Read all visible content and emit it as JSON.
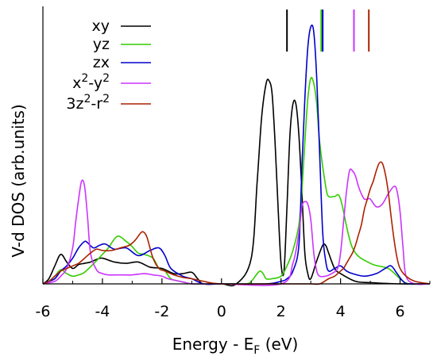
{
  "chart_data": {
    "type": "line",
    "title": "",
    "xlabel": {
      "main": "Energy - E",
      "sub": "F",
      "unit": " (eV)"
    },
    "ylabel": "V-d DOS (arb.units)",
    "xlim": [
      -6,
      7
    ],
    "ylim": [
      0,
      1.08
    ],
    "x_ticks": [
      -6,
      -4,
      -2,
      0,
      2,
      4,
      6
    ],
    "x_tick_labels": [
      "-6",
      "-4",
      "-2",
      "0",
      "2",
      "4",
      "6"
    ],
    "legend_position": "top-left",
    "series": [
      {
        "name": {
          "base": "xy"
        },
        "color": "#000000",
        "x": [
          -6.0,
          -5.8,
          -5.6,
          -5.4,
          -5.2,
          -5.0,
          -4.8,
          -4.6,
          -4.4,
          -4.2,
          -4.0,
          -3.6,
          -3.2,
          -2.8,
          -2.4,
          -2.0,
          -1.6,
          -1.3,
          -1.0,
          -0.8,
          -0.6,
          0.0,
          0.5,
          1.0,
          1.2,
          1.35,
          1.5,
          1.6,
          1.7,
          1.8,
          1.9,
          2.0,
          2.1,
          2.2,
          2.3,
          2.4,
          2.5,
          2.6,
          2.7,
          2.8,
          2.9,
          3.0,
          3.2,
          3.4,
          3.5,
          3.6,
          3.8,
          4.0,
          4.5,
          5.0,
          6.0,
          7.0
        ],
        "y": [
          0.0,
          0.02,
          0.07,
          0.115,
          0.085,
          0.06,
          0.075,
          0.08,
          0.085,
          0.095,
          0.1,
          0.085,
          0.08,
          0.085,
          0.065,
          0.06,
          0.04,
          0.04,
          0.045,
          0.02,
          0.0,
          0.0,
          0.0,
          0.1,
          0.4,
          0.65,
          0.78,
          0.79,
          0.74,
          0.55,
          0.3,
          0.08,
          0.05,
          0.3,
          0.58,
          0.7,
          0.7,
          0.58,
          0.36,
          0.12,
          0.04,
          0.02,
          0.09,
          0.15,
          0.15,
          0.12,
          0.06,
          0.04,
          0.01,
          0.005,
          0.0,
          0.0
        ]
      },
      {
        "name": {
          "base": "yz"
        },
        "color": "#33cc00",
        "x": [
          -6.0,
          -5.8,
          -5.6,
          -5.4,
          -5.2,
          -5.0,
          -4.8,
          -4.6,
          -4.2,
          -4.0,
          -3.8,
          -3.5,
          -3.2,
          -3.0,
          -2.8,
          -2.6,
          -2.3,
          -2.1,
          -1.9,
          -1.7,
          -1.4,
          -1.0,
          -0.6,
          0.0,
          0.8,
          1.0,
          1.2,
          1.3,
          1.4,
          1.5,
          1.7,
          2.0,
          2.2,
          2.4,
          2.6,
          2.7,
          2.8,
          2.9,
          3.0,
          3.1,
          3.2,
          3.3,
          3.5,
          3.6,
          3.8,
          4.0,
          4.4,
          5.0,
          5.6,
          6.0,
          6.3,
          7.0
        ],
        "y": [
          0.0,
          0.01,
          0.03,
          0.055,
          0.04,
          0.03,
          0.035,
          0.045,
          0.09,
          0.115,
          0.14,
          0.185,
          0.165,
          0.145,
          0.12,
          0.115,
          0.1,
          0.06,
          0.05,
          0.02,
          0.01,
          0.0,
          0.0,
          0.0,
          0.0,
          0.01,
          0.04,
          0.05,
          0.04,
          0.02,
          0.02,
          0.03,
          0.07,
          0.13,
          0.23,
          0.36,
          0.55,
          0.72,
          0.8,
          0.78,
          0.7,
          0.55,
          0.38,
          0.34,
          0.34,
          0.33,
          0.14,
          0.08,
          0.06,
          0.02,
          0.0,
          0.0
        ]
      },
      {
        "name": {
          "base": "zx"
        },
        "color": "#0000cc",
        "x": [
          -6.0,
          -5.8,
          -5.6,
          -5.4,
          -5.2,
          -5.0,
          -4.8,
          -4.6,
          -4.5,
          -4.3,
          -4.1,
          -3.9,
          -3.6,
          -3.2,
          -2.8,
          -2.4,
          -2.1,
          -1.9,
          -1.7,
          -1.3,
          -1.0,
          -0.6,
          0.0,
          1.5,
          2.0,
          2.2,
          2.4,
          2.6,
          2.7,
          2.8,
          2.9,
          3.0,
          3.1,
          3.2,
          3.3,
          3.4,
          3.5,
          3.6,
          3.8,
          4.0,
          4.2,
          4.4,
          4.8,
          5.2,
          5.5,
          5.7,
          5.9,
          6.1,
          6.3,
          7.0
        ],
        "y": [
          0.0,
          0.01,
          0.02,
          0.05,
          0.07,
          0.1,
          0.14,
          0.165,
          0.16,
          0.14,
          0.15,
          0.155,
          0.135,
          0.14,
          0.11,
          0.13,
          0.14,
          0.11,
          0.06,
          0.03,
          0.02,
          0.0,
          0.0,
          0.0,
          0.01,
          0.02,
          0.05,
          0.15,
          0.45,
          0.72,
          0.92,
          1.0,
          0.98,
          0.8,
          0.5,
          0.2,
          0.09,
          0.05,
          0.06,
          0.07,
          0.05,
          0.04,
          0.03,
          0.04,
          0.06,
          0.07,
          0.04,
          0.01,
          0.0,
          0.0
        ]
      },
      {
        "name": {
          "base": "x",
          "sup1": "2",
          "mid": "-y",
          "sup2": "2"
        },
        "color": "#cc33ff",
        "x": [
          -6.0,
          -5.6,
          -5.4,
          -5.2,
          -5.0,
          -4.9,
          -4.8,
          -4.7,
          -4.6,
          -4.5,
          -4.4,
          -4.2,
          -4.0,
          -3.8,
          -3.4,
          -3.0,
          -2.6,
          -2.3,
          -2.0,
          -1.8,
          -1.6,
          -1.2,
          -1.0,
          -0.5,
          0.0,
          2.0,
          2.4,
          2.6,
          2.7,
          2.8,
          2.9,
          3.0,
          3.1,
          3.2,
          3.3,
          3.5,
          3.7,
          3.9,
          4.0,
          4.1,
          4.2,
          4.3,
          4.4,
          4.5,
          4.6,
          4.7,
          4.8,
          4.9,
          5.0,
          5.2,
          5.4,
          5.6,
          5.8,
          5.9,
          6.0,
          6.1,
          6.2,
          6.5,
          7.0
        ],
        "y": [
          0.0,
          0.01,
          0.03,
          0.06,
          0.14,
          0.24,
          0.33,
          0.4,
          0.38,
          0.26,
          0.12,
          0.055,
          0.04,
          0.035,
          0.035,
          0.035,
          0.04,
          0.035,
          0.03,
          0.02,
          0.015,
          0.005,
          0.0,
          0.0,
          0.0,
          0.0,
          0.08,
          0.2,
          0.3,
          0.32,
          0.31,
          0.25,
          0.12,
          0.05,
          0.03,
          0.03,
          0.04,
          0.06,
          0.12,
          0.24,
          0.36,
          0.44,
          0.44,
          0.42,
          0.38,
          0.35,
          0.33,
          0.33,
          0.33,
          0.3,
          0.31,
          0.35,
          0.38,
          0.36,
          0.28,
          0.14,
          0.03,
          0.0,
          0.0
        ]
      },
      {
        "name": {
          "base": "3z",
          "sup1": "2",
          "mid": "-r",
          "sup2": "2"
        },
        "color": "#aa2200",
        "x": [
          -6.0,
          -5.8,
          -5.6,
          -5.4,
          -5.2,
          -5.0,
          -4.8,
          -4.6,
          -4.4,
          -4.2,
          -4.0,
          -3.7,
          -3.4,
          -3.1,
          -2.9,
          -2.7,
          -2.6,
          -2.5,
          -2.3,
          -2.1,
          -1.9,
          -1.6,
          -1.3,
          -1.0,
          -0.6,
          0.0,
          2.0,
          2.5,
          3.0,
          3.3,
          3.6,
          3.8,
          4.0,
          4.1,
          4.2,
          4.3,
          4.4,
          4.5,
          4.6,
          4.7,
          4.8,
          4.9,
          5.0,
          5.1,
          5.2,
          5.3,
          5.4,
          5.5,
          5.6,
          5.7,
          5.8,
          5.9,
          6.0,
          6.2,
          6.5,
          7.0
        ],
        "y": [
          0.0,
          0.01,
          0.03,
          0.05,
          0.06,
          0.07,
          0.08,
          0.1,
          0.12,
          0.135,
          0.13,
          0.13,
          0.14,
          0.15,
          0.17,
          0.2,
          0.2,
          0.18,
          0.1,
          0.06,
          0.05,
          0.035,
          0.025,
          0.02,
          0.01,
          0.0,
          0.0,
          0.0,
          0.0,
          0.0,
          0.02,
          0.03,
          0.05,
          0.06,
          0.08,
          0.1,
          0.12,
          0.15,
          0.19,
          0.23,
          0.29,
          0.33,
          0.37,
          0.4,
          0.44,
          0.47,
          0.47,
          0.43,
          0.36,
          0.26,
          0.17,
          0.1,
          0.06,
          0.03,
          0.01,
          0.0
        ]
      }
    ],
    "markers": [
      {
        "x": 2.2,
        "color": "#000000"
      },
      {
        "x": 3.35,
        "color": "#33cc00"
      },
      {
        "x": 3.4,
        "color": "#0000cc"
      },
      {
        "x": 4.45,
        "color": "#cc33ff"
      },
      {
        "x": 4.95,
        "color": "#aa2200"
      }
    ]
  }
}
